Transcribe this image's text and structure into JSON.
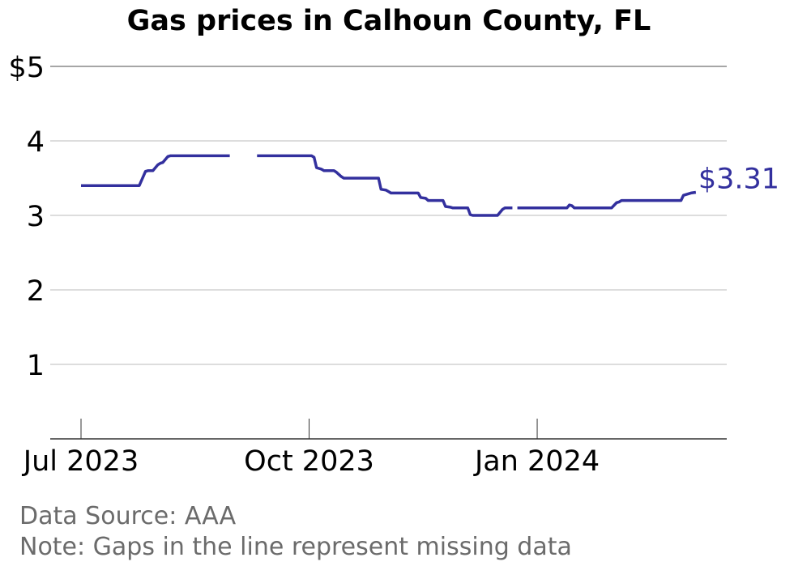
{
  "chart_data": {
    "type": "line",
    "title": "Gas prices in Calhoun County, FL",
    "xlabel": "",
    "ylabel": "",
    "x_unit": "days since Jul 1 2023",
    "xlim": [
      0,
      260
    ],
    "ylim": [
      0,
      5
    ],
    "grid": true,
    "y_ticks": [
      {
        "value": 5,
        "label": "$5"
      },
      {
        "value": 4,
        "label": "4"
      },
      {
        "value": 3,
        "label": "3"
      },
      {
        "value": 2,
        "label": "2"
      },
      {
        "value": 1,
        "label": "1"
      }
    ],
    "x_ticks": [
      {
        "value": 0,
        "label": "Jul 2023"
      },
      {
        "value": 92,
        "label": "Oct 2023"
      },
      {
        "value": 184,
        "label": "Jan 2024"
      }
    ],
    "color": "#33309e",
    "end_label": "$3.31",
    "segments": [
      [
        [
          0,
          3.4
        ],
        [
          23.5,
          3.4
        ],
        [
          26,
          3.59
        ],
        [
          27,
          3.6
        ],
        [
          29,
          3.6
        ],
        [
          31,
          3.68
        ],
        [
          32,
          3.7
        ],
        [
          33,
          3.71
        ],
        [
          35,
          3.79
        ],
        [
          36,
          3.8
        ],
        [
          60,
          3.8
        ]
      ],
      [
        [
          71,
          3.8
        ],
        [
          93,
          3.8
        ],
        [
          94,
          3.78
        ],
        [
          95,
          3.64
        ],
        [
          97,
          3.62
        ],
        [
          98,
          3.6
        ],
        [
          102,
          3.6
        ],
        [
          103,
          3.58
        ],
        [
          105,
          3.52
        ],
        [
          106,
          3.5
        ],
        [
          120,
          3.5
        ],
        [
          121,
          3.35
        ],
        [
          123,
          3.34
        ],
        [
          124,
          3.32
        ],
        [
          125,
          3.3
        ],
        [
          136,
          3.3
        ],
        [
          137,
          3.24
        ],
        [
          139,
          3.23
        ],
        [
          140,
          3.2
        ],
        [
          146,
          3.2
        ],
        [
          147,
          3.12
        ],
        [
          149,
          3.11
        ],
        [
          150,
          3.1
        ],
        [
          156,
          3.1
        ],
        [
          157,
          3.01
        ],
        [
          158,
          3.0
        ],
        [
          168,
          3.0
        ],
        [
          170,
          3.08
        ],
        [
          171,
          3.1
        ],
        [
          174,
          3.1
        ]
      ],
      [
        [
          176,
          3.1
        ],
        [
          196,
          3.1
        ],
        [
          197,
          3.14
        ],
        [
          198,
          3.13
        ],
        [
          199,
          3.1
        ],
        [
          214,
          3.1
        ],
        [
          216,
          3.17
        ],
        [
          217,
          3.18
        ],
        [
          218,
          3.2
        ],
        [
          242,
          3.2
        ],
        [
          243,
          3.27
        ],
        [
          246,
          3.3
        ],
        [
          248,
          3.31
        ]
      ]
    ]
  },
  "notes": {
    "source": "Data Source: AAA",
    "gaps": "Note: Gaps in the line represent missing data"
  }
}
